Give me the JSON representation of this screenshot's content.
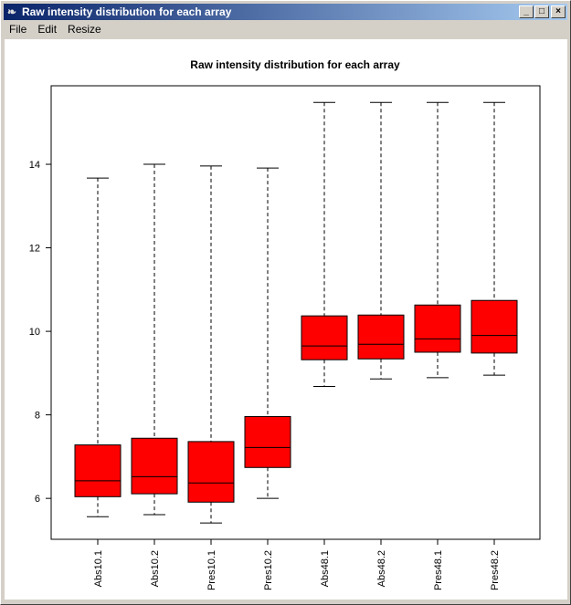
{
  "window": {
    "title": "Raw intensity distribution for each array",
    "icon": "feather-icon",
    "buttons": [
      "_",
      "□",
      "×"
    ]
  },
  "menu": [
    "File",
    "Edit",
    "Resize"
  ],
  "chart_data": {
    "type": "boxplot",
    "title": "Raw intensity distribution for each array",
    "xlabel": "",
    "ylabel": "",
    "ylim": [
      5.02,
      15.88
    ],
    "yticks": [
      6,
      8,
      10,
      12,
      14
    ],
    "fill_color": "#ff0000",
    "categories": [
      "Abs10.1",
      "Abs10.2",
      "Pres10.1",
      "Pres10.2",
      "Abs48.1",
      "Abs48.2",
      "Pres48.1",
      "Pres48.2"
    ],
    "boxes": [
      {
        "min": 5.56,
        "q1": 6.04,
        "median": 6.42,
        "q3": 7.28,
        "max": 13.67
      },
      {
        "min": 5.61,
        "q1": 6.11,
        "median": 6.52,
        "q3": 7.44,
        "max": 14.0
      },
      {
        "min": 5.41,
        "q1": 5.91,
        "median": 6.37,
        "q3": 7.36,
        "max": 13.96
      },
      {
        "min": 6.0,
        "q1": 6.74,
        "median": 7.22,
        "q3": 7.96,
        "max": 13.91
      },
      {
        "min": 8.68,
        "q1": 9.32,
        "median": 9.65,
        "q3": 10.37,
        "max": 15.48
      },
      {
        "min": 8.86,
        "q1": 9.34,
        "median": 9.69,
        "q3": 10.39,
        "max": 15.48
      },
      {
        "min": 8.89,
        "q1": 9.5,
        "median": 9.82,
        "q3": 10.63,
        "max": 15.48
      },
      {
        "min": 8.95,
        "q1": 9.48,
        "median": 9.9,
        "q3": 10.74,
        "max": 15.48
      }
    ]
  }
}
